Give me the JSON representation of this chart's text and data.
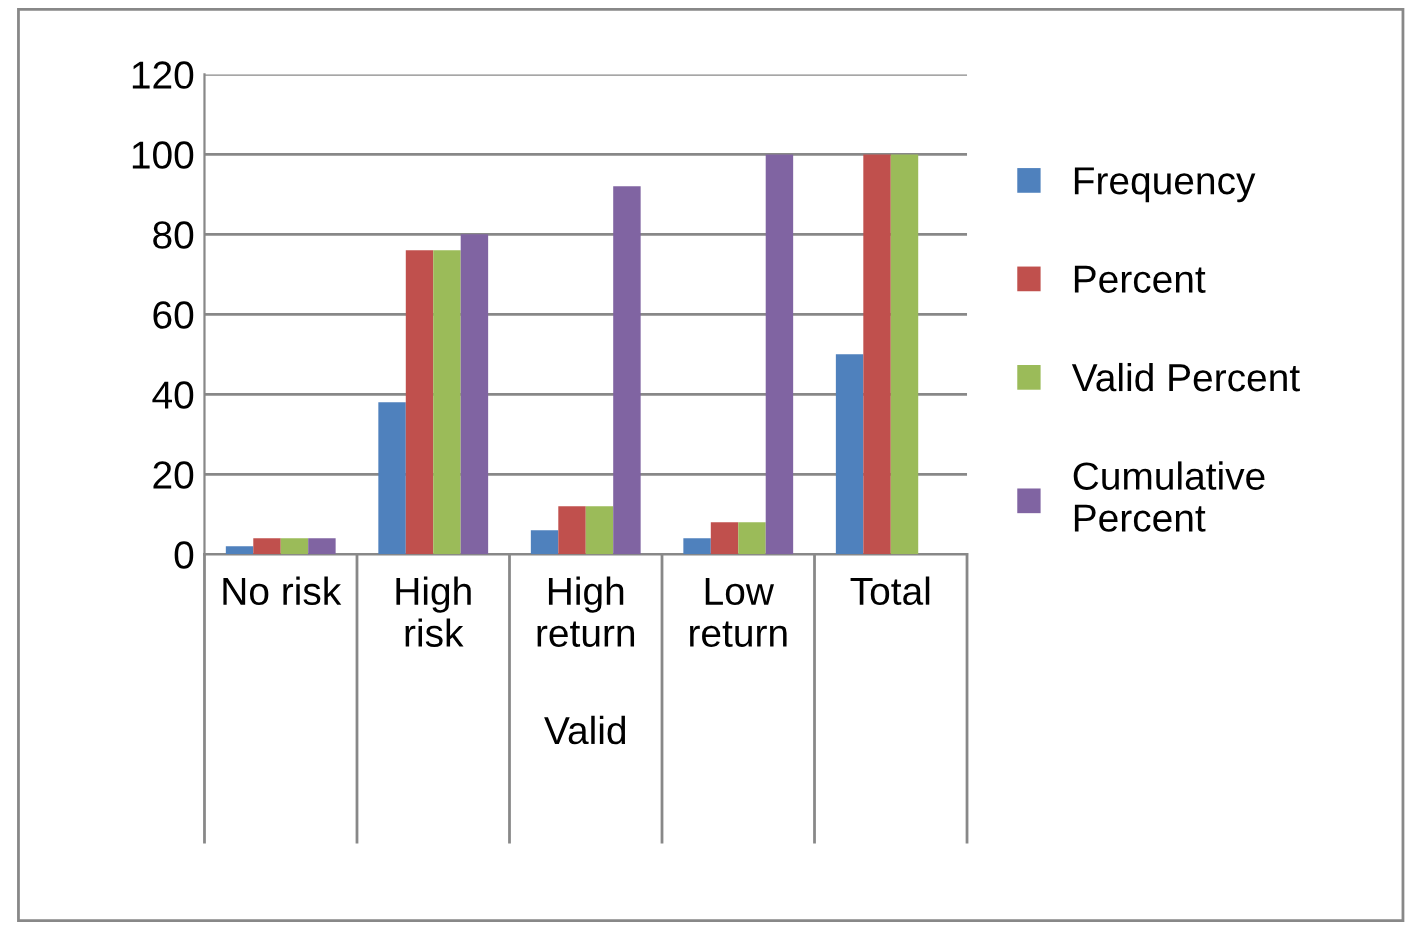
{
  "chart_data": {
    "type": "bar",
    "categories": [
      "No risk",
      "High risk",
      "High return",
      "Low return",
      "Total"
    ],
    "xlabel": "Valid",
    "series": [
      {
        "name": "Frequency",
        "color": "#4f81bd",
        "values": [
          2,
          38,
          6,
          4,
          50
        ]
      },
      {
        "name": "Percent",
        "color": "#c0504d",
        "values": [
          4,
          76,
          12,
          8,
          100
        ]
      },
      {
        "name": "Valid Percent",
        "color": "#9bbb59",
        "values": [
          4,
          76,
          12,
          8,
          100
        ]
      },
      {
        "name": "Cumulative Percent",
        "color": "#8064a2",
        "values": [
          4,
          80,
          92,
          100,
          null
        ]
      }
    ],
    "ylim": [
      0,
      120
    ],
    "yticks": [
      0,
      20,
      40,
      60,
      80,
      100,
      120
    ],
    "grid": "y",
    "legend": "right"
  }
}
